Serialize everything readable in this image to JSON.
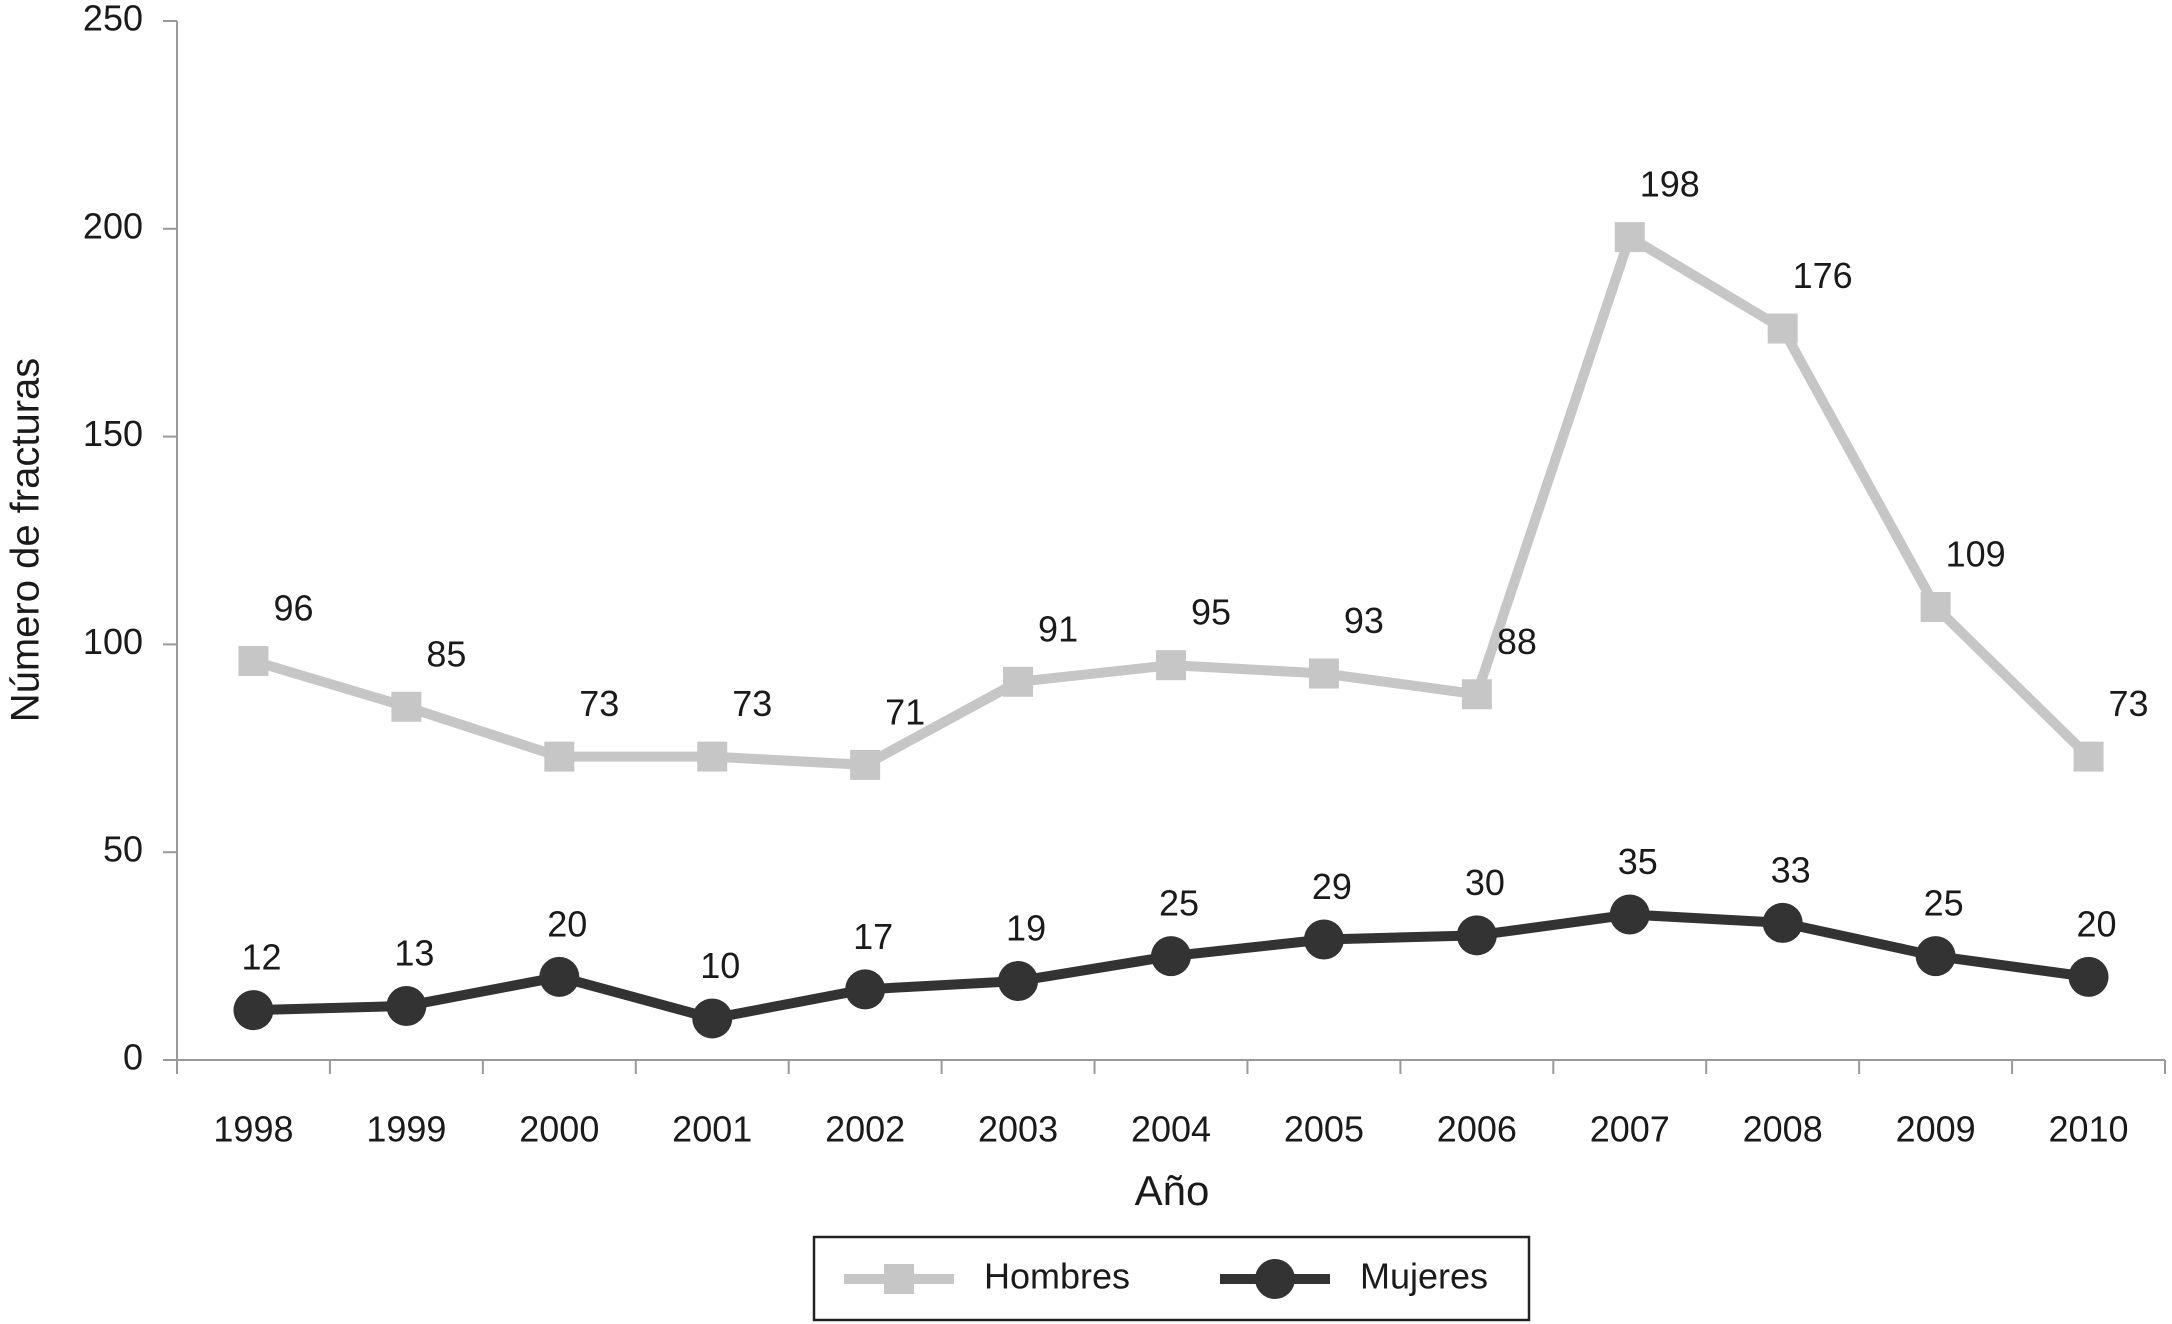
{
  "chart_data": {
    "type": "line",
    "x_label": "Año",
    "y_label": "Número de fracturas",
    "categories": [
      "1998",
      "1999",
      "2000",
      "2001",
      "2002",
      "2003",
      "2004",
      "2005",
      "2006",
      "2007",
      "2008",
      "2009",
      "2010"
    ],
    "series": [
      {
        "name": "Hombres",
        "color": "#c6c6c6",
        "marker": "square",
        "values": [
          96,
          85,
          73,
          73,
          71,
          91,
          95,
          93,
          88,
          198,
          176,
          109,
          73
        ]
      },
      {
        "name": "Mujeres",
        "color": "#333333",
        "marker": "circle",
        "values": [
          12,
          13,
          20,
          10,
          17,
          19,
          25,
          29,
          30,
          35,
          33,
          25,
          20
        ]
      }
    ],
    "ylim": [
      0,
      250
    ],
    "yticks": [
      0,
      50,
      100,
      150,
      200,
      250
    ],
    "grid": false,
    "legend": "bottom"
  }
}
